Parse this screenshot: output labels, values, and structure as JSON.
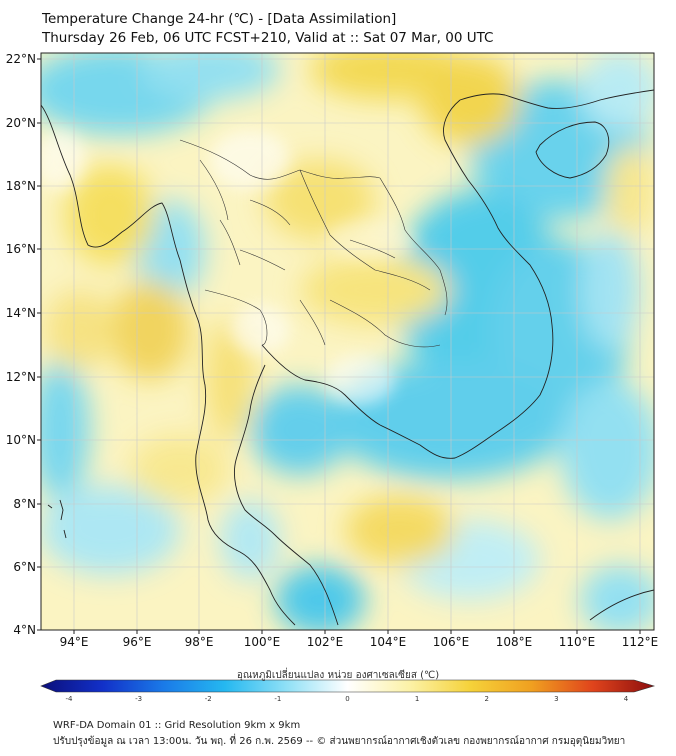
{
  "header": {
    "title_line1": "Temperature Change 24-hr (℃) - [Data Assimilation]",
    "title_line2": "Thursday 26 Feb, 06 UTC FCST+210, Valid at :: Sat 07 Mar, 00 UTC"
  },
  "map": {
    "region": "Mainland Southeast Asia",
    "lon_range": [
      93,
      112.5
    ],
    "lat_range": [
      4,
      22.2
    ],
    "lon_ticks": [
      "94°E",
      "96°E",
      "98°E",
      "100°E",
      "102°E",
      "104°E",
      "106°E",
      "108°E",
      "110°E",
      "112°E"
    ],
    "lat_ticks": [
      "22°N",
      "20°N",
      "18°N",
      "16°N",
      "14°N",
      "12°N",
      "10°N",
      "8°N",
      "6°N",
      "4°N"
    ],
    "gridlines": true,
    "field": "24-hr temperature change",
    "colors": {
      "neutral": "#ffffff",
      "cool_light": "#b8ecf6",
      "cool": "#4fcfee",
      "warm_light": "#fbf3b0",
      "warm": "#f5df6e",
      "coast": "#222222"
    }
  },
  "colorbar": {
    "title": "อุณหภูมิเปลี่ยนแปลง หน่วย องศาเซลเซียส (℃)",
    "tick_labels": [
      "-4",
      "-3",
      "-2",
      "-1",
      "0",
      "1",
      "2",
      "3",
      "4"
    ],
    "range": [
      -4,
      4
    ],
    "extend": "both",
    "stops": [
      "#0b0f7a",
      "#1230c8",
      "#1a7ae8",
      "#25b8f0",
      "#8fe0f6",
      "#ffffff",
      "#fcf2a8",
      "#f5d23a",
      "#f0a020",
      "#e0441c",
      "#8c0e0e"
    ]
  },
  "footer": {
    "line1": "WRF-DA Domain 01 :: Grid Resolution 9km x 9km",
    "line2": "ปรับปรุงข้อมูล ณ เวลา 13:00น. วัน พฤ. ที่ 26 ก.พ. 2569 -- © ส่วนพยากรณ์อากาศเชิงตัวเลข กองพยากรณ์อากาศ กรมอุตุนิยมวิทยา"
  }
}
